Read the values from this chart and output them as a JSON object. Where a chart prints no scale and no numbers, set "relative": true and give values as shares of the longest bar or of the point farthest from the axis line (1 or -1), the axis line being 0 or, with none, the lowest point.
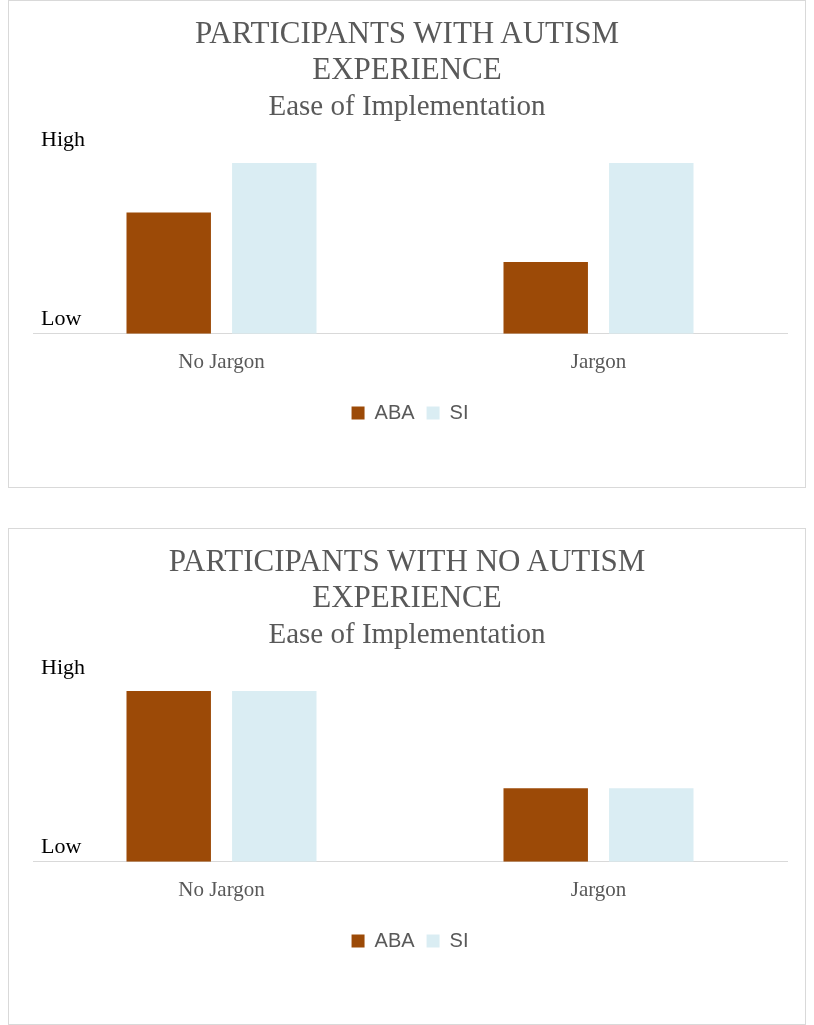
{
  "chart_data": [
    {
      "type": "bar",
      "title": "PARTICIPANTS WITH AUTISM EXPERIENCE",
      "subtitle": "Ease of Implementation",
      "categories": [
        "No Jargon",
        "Jargon"
      ],
      "relative": true,
      "series": [
        {
          "name": "ABA",
          "color": "#9c4a07",
          "values": [
            0.71,
            0.42
          ]
        },
        {
          "name": "SI",
          "color": "#daedf3",
          "values": [
            1,
            1
          ]
        }
      ],
      "annotations": [
        "High",
        "Low"
      ],
      "legend": "bottom"
    },
    {
      "type": "bar",
      "title": "PARTICIPANTS WITH NO AUTISM EXPERIENCE",
      "subtitle": "Ease of Implementation",
      "categories": [
        "No Jargon",
        "Jargon"
      ],
      "relative": true,
      "series": [
        {
          "name": "ABA",
          "color": "#9c4a07",
          "values": [
            1,
            0.43
          ]
        },
        {
          "name": "SI",
          "color": "#daedf3",
          "values": [
            1,
            0.43
          ]
        }
      ],
      "annotations": [
        "High",
        "Low"
      ],
      "legend": "bottom"
    }
  ]
}
